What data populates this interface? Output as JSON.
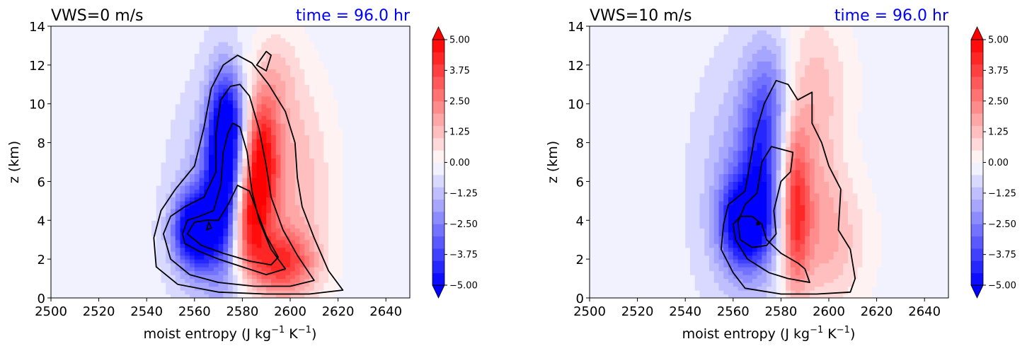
{
  "chart_data": [
    {
      "type": "heatmap",
      "title_left": "VWS=0 m/s",
      "title_right": "time = 96.0 hr",
      "title_right_color": "#0000ff",
      "xlabel": "moist entropy (J kg",
      "xlabel_sup1": "−1",
      "xlabel_mid": " K",
      "xlabel_sup2": "−1",
      "xlabel_end": ")",
      "ylabel": "z (km)",
      "xlim": [
        2500,
        2650
      ],
      "ylim": [
        0,
        14
      ],
      "xticks": [
        "2500",
        "2520",
        "2540",
        "2560",
        "2580",
        "2600",
        "2620",
        "2640"
      ],
      "yticks": [
        "0",
        "2",
        "4",
        "6",
        "8",
        "10",
        "12",
        "14"
      ],
      "colorbar": {
        "min": -5.0,
        "max": 5.0,
        "extend": "both",
        "tick_values": [
          -5.0,
          -3.75,
          -2.5,
          -1.25,
          0.0,
          1.25,
          2.5,
          3.75,
          5.0
        ],
        "tick_labels": [
          "−5.00",
          "−3.75",
          "−2.50",
          "−1.25",
          "0.00",
          "1.25",
          "2.50",
          "3.75",
          "5.00"
        ],
        "colormap": "bwr"
      },
      "fields": {
        "background_value": -0.3,
        "negative_features": [
          {
            "x": 2560,
            "y": 3.5,
            "sx": 6,
            "sy": 1.3,
            "amp": -5.5
          },
          {
            "x": 2572,
            "y": 7.0,
            "sx": 5,
            "sy": 3.0,
            "amp": -5.0
          },
          {
            "x": 2570,
            "y": 4.5,
            "sx": 11,
            "sy": 3.5,
            "amp": -2.2
          },
          {
            "x": 2575,
            "y": 9.5,
            "sx": 5,
            "sy": 1.5,
            "amp": -1.8
          }
        ],
        "positive_features": [
          {
            "x": 2588,
            "y": 7.0,
            "sx": 5,
            "sy": 2.5,
            "amp": 4.8
          },
          {
            "x": 2582,
            "y": 4.0,
            "sx": 5,
            "sy": 1.8,
            "amp": 4.0
          },
          {
            "x": 2596,
            "y": 1.8,
            "sx": 10,
            "sy": 1.2,
            "amp": 3.6
          },
          {
            "x": 2600,
            "y": 6.0,
            "sx": 12,
            "sy": 4.0,
            "amp": 1.8
          },
          {
            "x": 2595,
            "y": 11.5,
            "sx": 6,
            "sy": 1.8,
            "amp": 0.9
          }
        ]
      },
      "contours": [
        [
          [
            2555,
            3.3
          ],
          [
            2557,
            4.0
          ],
          [
            2562,
            4.2
          ],
          [
            2568,
            4.5
          ],
          [
            2571,
            5.8
          ],
          [
            2572,
            7.5
          ],
          [
            2574,
            8.5
          ],
          [
            2576,
            9.0
          ],
          [
            2579,
            8.8
          ],
          [
            2582,
            7.5
          ],
          [
            2584,
            5.5
          ],
          [
            2587,
            4.0
          ],
          [
            2592,
            2.5
          ],
          [
            2598,
            1.5
          ],
          [
            2590,
            1.2
          ],
          [
            2580,
            1.6
          ],
          [
            2570,
            2.0
          ],
          [
            2562,
            2.4
          ],
          [
            2556,
            2.8
          ]
        ],
        [
          [
            2557,
            3.3
          ],
          [
            2560,
            3.9
          ],
          [
            2565,
            4.0
          ],
          [
            2570,
            4.0
          ],
          [
            2574,
            4.8
          ],
          [
            2578,
            5.8
          ],
          [
            2583,
            5.5
          ],
          [
            2586,
            4.5
          ],
          [
            2590,
            3.2
          ],
          [
            2595,
            2.1
          ],
          [
            2592,
            1.7
          ],
          [
            2583,
            1.9
          ],
          [
            2572,
            2.3
          ],
          [
            2563,
            2.7
          ]
        ],
        [
          [
            2565,
            3.5
          ],
          [
            2566,
            3.9
          ],
          [
            2567,
            3.6
          ]
        ],
        [
          [
            2547,
            3.3
          ],
          [
            2550,
            4.2
          ],
          [
            2556,
            4.7
          ],
          [
            2564,
            5.2
          ],
          [
            2569,
            6.5
          ],
          [
            2569,
            8.5
          ],
          [
            2571,
            10.2
          ],
          [
            2575,
            10.9
          ],
          [
            2579,
            11.0
          ],
          [
            2583,
            10.4
          ],
          [
            2587,
            8.7
          ],
          [
            2590,
            6.8
          ],
          [
            2592,
            5.2
          ],
          [
            2597,
            3.5
          ],
          [
            2603,
            2.2
          ],
          [
            2610,
            0.9
          ],
          [
            2600,
            0.6
          ],
          [
            2585,
            0.6
          ],
          [
            2570,
            0.8
          ],
          [
            2558,
            1.2
          ],
          [
            2550,
            2.0
          ]
        ],
        [
          [
            2543,
            3.1
          ],
          [
            2546,
            4.5
          ],
          [
            2552,
            5.6
          ],
          [
            2560,
            6.8
          ],
          [
            2564,
            8.8
          ],
          [
            2567,
            10.8
          ],
          [
            2572,
            12.0
          ],
          [
            2578,
            12.5
          ],
          [
            2584,
            12.1
          ],
          [
            2591,
            11.0
          ],
          [
            2598,
            9.6
          ],
          [
            2602,
            8.0
          ],
          [
            2603,
            6.2
          ],
          [
            2605,
            4.7
          ],
          [
            2610,
            3.1
          ],
          [
            2616,
            1.4
          ],
          [
            2622,
            0.4
          ],
          [
            2608,
            0.2
          ],
          [
            2590,
            0.2
          ],
          [
            2570,
            0.3
          ],
          [
            2553,
            0.7
          ],
          [
            2544,
            1.6
          ]
        ],
        [
          [
            2586,
            12.0
          ],
          [
            2590,
            12.7
          ],
          [
            2592,
            12.5
          ],
          [
            2590,
            11.7
          ]
        ]
      ]
    },
    {
      "type": "heatmap",
      "title_left": "VWS=10 m/s",
      "title_right": "time = 96.0 hr",
      "title_right_color": "#0000ff",
      "xlabel": "moist entropy (J kg",
      "xlabel_sup1": "−1",
      "xlabel_mid": " K",
      "xlabel_sup2": "−1",
      "xlabel_end": ")",
      "ylabel": "z (km)",
      "xlim": [
        2500,
        2650
      ],
      "ylim": [
        0,
        14
      ],
      "xticks": [
        "2500",
        "2520",
        "2540",
        "2560",
        "2580",
        "2600",
        "2620",
        "2640"
      ],
      "yticks": [
        "0",
        "2",
        "4",
        "6",
        "8",
        "10",
        "12",
        "14"
      ],
      "colorbar": {
        "min": -5.0,
        "max": 5.0,
        "extend": "both",
        "tick_values": [
          -5.0,
          -3.75,
          -2.5,
          -1.25,
          0.0,
          1.25,
          2.5,
          3.75,
          5.0
        ],
        "tick_labels": [
          "−5.00",
          "−3.75",
          "−2.50",
          "−1.25",
          "0.00",
          "1.25",
          "2.50",
          "3.75",
          "5.00"
        ],
        "colormap": "bwr"
      },
      "fields": {
        "background_value": -0.3,
        "negative_features": [
          {
            "x": 2565,
            "y": 3.9,
            "sx": 7,
            "sy": 1.5,
            "amp": -5.0
          },
          {
            "x": 2572,
            "y": 7.5,
            "sx": 6,
            "sy": 3.0,
            "amp": -2.8
          },
          {
            "x": 2565,
            "y": 5.5,
            "sx": 12,
            "sy": 4.0,
            "amp": -1.8
          },
          {
            "x": 2578,
            "y": 11.0,
            "sx": 7,
            "sy": 2.0,
            "amp": -1.2
          }
        ],
        "positive_features": [
          {
            "x": 2586,
            "y": 4.5,
            "sx": 4,
            "sy": 3.0,
            "amp": 3.6
          },
          {
            "x": 2592,
            "y": 7.5,
            "sx": 9,
            "sy": 4.0,
            "amp": 1.4
          },
          {
            "x": 2600,
            "y": 3.0,
            "sx": 12,
            "sy": 2.5,
            "amp": 1.6
          },
          {
            "x": 2595,
            "y": 11.5,
            "sx": 12,
            "sy": 2.5,
            "amp": 0.8
          }
        ]
      },
      "contours": [
        [
          [
            2570,
            3.9
          ],
          [
            2571,
            3.8
          ],
          [
            2570,
            3.75
          ]
        ],
        [
          [
            2562,
            3.9
          ],
          [
            2565,
            4.8
          ],
          [
            2570,
            5.4
          ],
          [
            2572,
            7.0
          ],
          [
            2576,
            7.8
          ],
          [
            2585,
            7.5
          ],
          [
            2584,
            6.5
          ],
          [
            2580,
            6.0
          ],
          [
            2577,
            4.5
          ],
          [
            2578,
            3.3
          ],
          [
            2574,
            2.7
          ],
          [
            2568,
            2.6
          ],
          [
            2563,
            3.0
          ]
        ],
        [
          [
            2556,
            3.8
          ],
          [
            2558,
            4.8
          ],
          [
            2565,
            5.5
          ],
          [
            2569,
            8.3
          ],
          [
            2573,
            10.0
          ],
          [
            2578,
            11.2
          ],
          [
            2583,
            11.0
          ],
          [
            2587,
            10.2
          ],
          [
            2593,
            10.6
          ],
          [
            2593,
            9.0
          ],
          [
            2597,
            8.0
          ],
          [
            2600,
            6.8
          ],
          [
            2605,
            5.6
          ],
          [
            2604,
            3.5
          ],
          [
            2609,
            2.5
          ],
          [
            2611,
            1.0
          ],
          [
            2609,
            0.3
          ],
          [
            2595,
            0.2
          ],
          [
            2580,
            0.2
          ],
          [
            2565,
            0.5
          ],
          [
            2560,
            1.3
          ],
          [
            2555,
            2.5
          ]
        ],
        [
          [
            2560,
            3.8
          ],
          [
            2563,
            4.2
          ],
          [
            2568,
            4.2
          ],
          [
            2572,
            3.8
          ],
          [
            2574,
            3.0
          ],
          [
            2580,
            2.3
          ],
          [
            2587,
            1.8
          ],
          [
            2590,
            1.5
          ],
          [
            2592,
            0.8
          ],
          [
            2583,
            1.0
          ],
          [
            2575,
            1.3
          ],
          [
            2566,
            2.0
          ],
          [
            2561,
            3.0
          ]
        ]
      ]
    }
  ]
}
